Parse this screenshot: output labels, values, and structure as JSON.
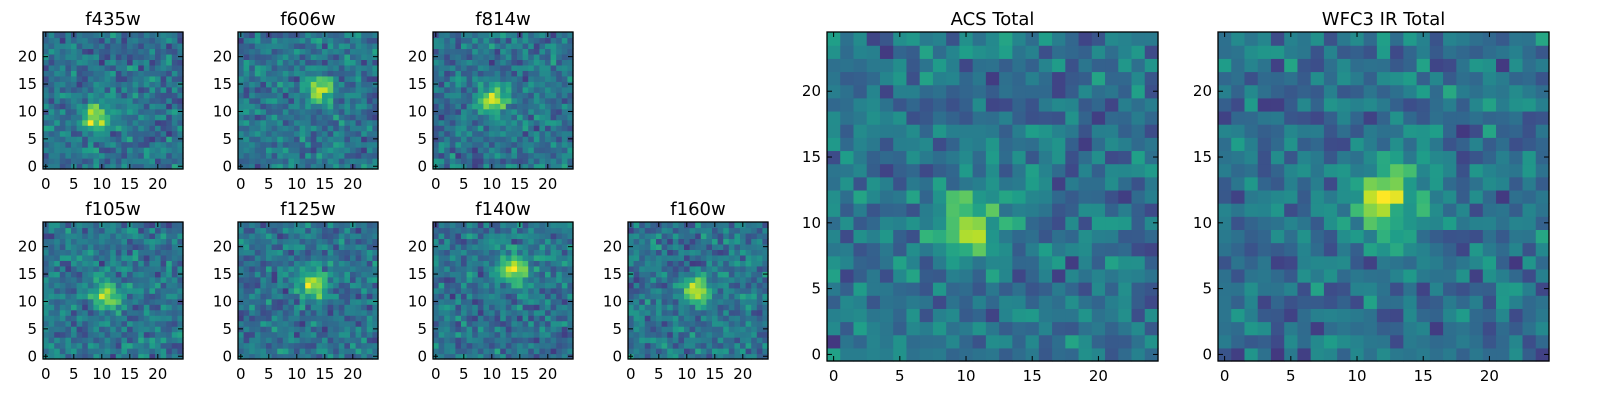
{
  "chart_data": [
    {
      "type": "heatmap",
      "title": "f435w",
      "xticks": [
        0,
        5,
        10,
        15,
        20
      ],
      "yticks": [
        0,
        5,
        10,
        15,
        20
      ],
      "xlim": [
        0,
        24
      ],
      "ylim": [
        0,
        24
      ],
      "colormap": "viridis",
      "grid_size": 25,
      "peak": [
        9,
        9
      ]
    },
    {
      "type": "heatmap",
      "title": "f606w",
      "xticks": [
        0,
        5,
        10,
        15,
        20
      ],
      "yticks": [
        0,
        5,
        10,
        15,
        20
      ],
      "xlim": [
        0,
        24
      ],
      "ylim": [
        0,
        24
      ],
      "colormap": "viridis",
      "grid_size": 25,
      "peak": [
        14,
        14
      ]
    },
    {
      "type": "heatmap",
      "title": "f814w",
      "xticks": [
        0,
        5,
        10,
        15,
        20
      ],
      "yticks": [
        0,
        5,
        10,
        15,
        20
      ],
      "xlim": [
        0,
        24
      ],
      "ylim": [
        0,
        24
      ],
      "colormap": "viridis",
      "grid_size": 25,
      "peak": [
        10,
        12
      ]
    },
    {
      "type": "heatmap",
      "title": "f105w",
      "xticks": [
        0,
        5,
        10,
        15,
        20
      ],
      "yticks": [
        0,
        5,
        10,
        15,
        20
      ],
      "xlim": [
        0,
        24
      ],
      "ylim": [
        0,
        24
      ],
      "colormap": "viridis",
      "grid_size": 25,
      "peak": [
        11,
        11
      ]
    },
    {
      "type": "heatmap",
      "title": "f125w",
      "xticks": [
        0,
        5,
        10,
        15,
        20
      ],
      "yticks": [
        0,
        5,
        10,
        15,
        20
      ],
      "xlim": [
        0,
        24
      ],
      "ylim": [
        0,
        24
      ],
      "colormap": "viridis",
      "grid_size": 25,
      "peak": [
        13,
        13
      ]
    },
    {
      "type": "heatmap",
      "title": "f140w",
      "xticks": [
        0,
        5,
        10,
        15,
        20
      ],
      "yticks": [
        0,
        5,
        10,
        15,
        20
      ],
      "xlim": [
        0,
        24
      ],
      "ylim": [
        0,
        24
      ],
      "colormap": "viridis",
      "grid_size": 25,
      "peak": [
        14,
        16
      ]
    },
    {
      "type": "heatmap",
      "title": "f160w",
      "xticks": [
        0,
        5,
        10,
        15,
        20
      ],
      "yticks": [
        0,
        5,
        10,
        15,
        20
      ],
      "xlim": [
        0,
        24
      ],
      "ylim": [
        0,
        24
      ],
      "colormap": "viridis",
      "grid_size": 25,
      "peak": [
        12,
        12
      ]
    },
    {
      "type": "heatmap",
      "title": "ACS Total",
      "xticks": [
        0,
        5,
        10,
        15,
        20
      ],
      "yticks": [
        0,
        5,
        10,
        15,
        20
      ],
      "xlim": [
        0,
        24
      ],
      "ylim": [
        0,
        24
      ],
      "colormap": "viridis",
      "grid_size": 25,
      "peak": [
        10,
        10
      ]
    },
    {
      "type": "heatmap",
      "title": "WFC3 IR Total",
      "xticks": [
        0,
        5,
        10,
        15,
        20
      ],
      "yticks": [
        0,
        5,
        10,
        15,
        20
      ],
      "xlim": [
        0,
        24
      ],
      "ylim": [
        0,
        24
      ],
      "colormap": "viridis",
      "grid_size": 25,
      "peak": [
        12,
        12
      ]
    }
  ]
}
